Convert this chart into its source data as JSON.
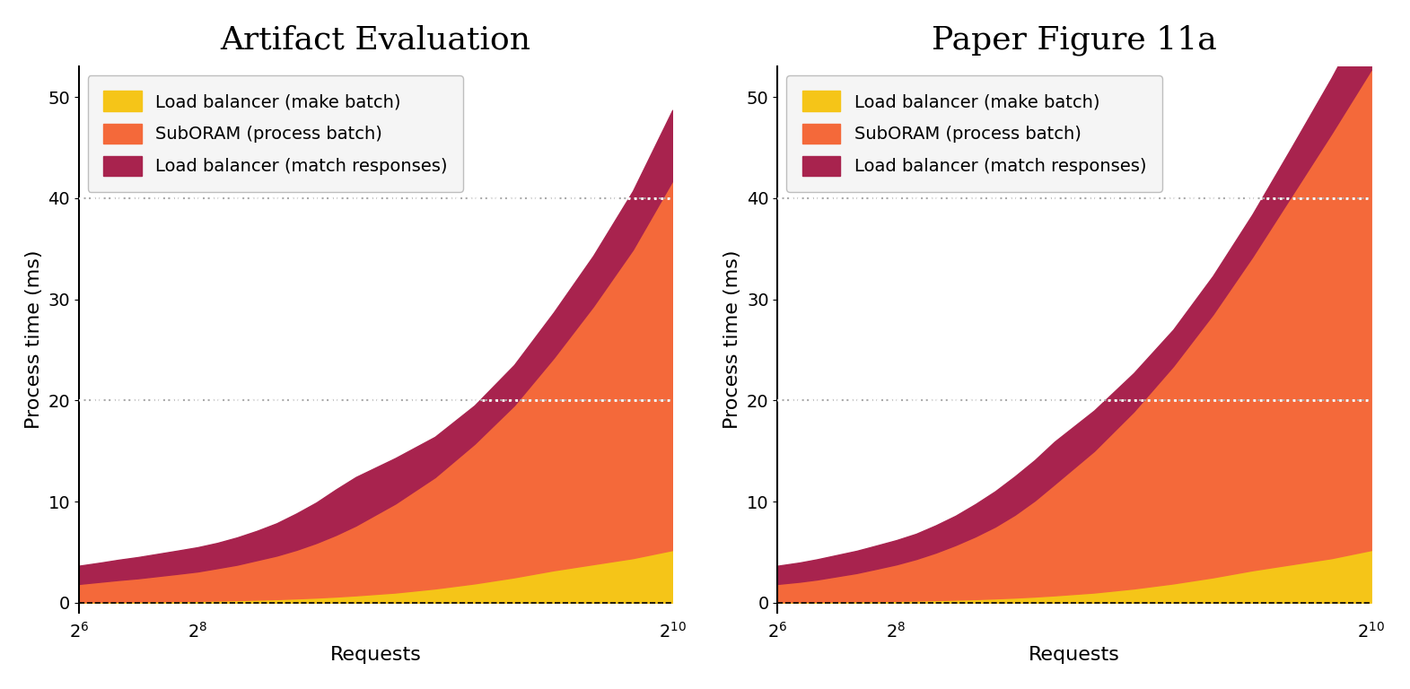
{
  "title_left": "Artifact Evaluation",
  "title_right": "Paper Figure 11a",
  "xlabel": "Requests",
  "ylabel": "Process time (ms)",
  "legend_labels": [
    "Load balancer (make batch)",
    "SubORAM (process batch)",
    "Load balancer (match responses)"
  ],
  "colors": [
    "#F5C518",
    "#F4693A",
    "#A8234E"
  ],
  "x_ticks": [
    64,
    256,
    1024
  ],
  "x_tick_labels": [
    "$2^{6}$",
    "$2^{8}$",
    "$2^{10}$"
  ],
  "xlim": [
    64,
    1024
  ],
  "ylim": [
    -1,
    53
  ],
  "x_values": [
    64,
    100,
    128,
    160,
    192,
    224,
    256,
    288,
    320,
    352,
    384,
    416,
    448,
    480,
    512,
    576,
    640,
    704,
    768,
    832,
    896,
    960,
    1024
  ],
  "left_make_batch": [
    0.05,
    0.07,
    0.09,
    0.11,
    0.13,
    0.15,
    0.18,
    0.21,
    0.25,
    0.3,
    0.35,
    0.42,
    0.5,
    0.6,
    0.72,
    1.0,
    1.4,
    1.9,
    2.5,
    3.2,
    3.8,
    4.4,
    5.2
  ],
  "left_suboram": [
    1.8,
    2.0,
    2.15,
    2.3,
    2.5,
    2.7,
    2.9,
    3.2,
    3.5,
    3.9,
    4.3,
    4.8,
    5.4,
    6.1,
    6.9,
    8.8,
    11.0,
    13.8,
    17.0,
    21.0,
    25.5,
    30.5,
    36.5
  ],
  "left_match_responses": [
    1.8,
    1.9,
    2.0,
    2.1,
    2.2,
    2.3,
    2.4,
    2.5,
    2.7,
    2.9,
    3.2,
    3.6,
    4.0,
    4.5,
    4.8,
    4.5,
    4.0,
    3.8,
    4.0,
    4.5,
    5.0,
    5.8,
    7.0
  ],
  "right_make_batch": [
    0.05,
    0.07,
    0.09,
    0.11,
    0.13,
    0.15,
    0.18,
    0.21,
    0.25,
    0.3,
    0.35,
    0.42,
    0.5,
    0.6,
    0.72,
    1.0,
    1.4,
    1.9,
    2.5,
    3.2,
    3.8,
    4.4,
    5.2
  ],
  "right_suboram": [
    1.8,
    2.0,
    2.2,
    2.5,
    2.8,
    3.2,
    3.6,
    4.1,
    4.7,
    5.4,
    6.2,
    7.1,
    8.2,
    9.5,
    11.0,
    14.0,
    17.5,
    21.5,
    26.0,
    31.0,
    36.5,
    42.0,
    47.5
  ],
  "right_match_responses": [
    1.8,
    1.9,
    2.0,
    2.1,
    2.2,
    2.3,
    2.4,
    2.5,
    2.7,
    2.9,
    3.2,
    3.5,
    3.8,
    4.0,
    4.2,
    4.0,
    3.8,
    3.6,
    3.8,
    4.2,
    4.8,
    5.5,
    6.5
  ],
  "bg_color": "#FFFFFF",
  "legend_bg": "#F5F5F5",
  "legend_edge": "#BBBBBB",
  "title_fontsize": 26,
  "label_fontsize": 16,
  "legend_fontsize": 14,
  "tick_fontsize": 14
}
